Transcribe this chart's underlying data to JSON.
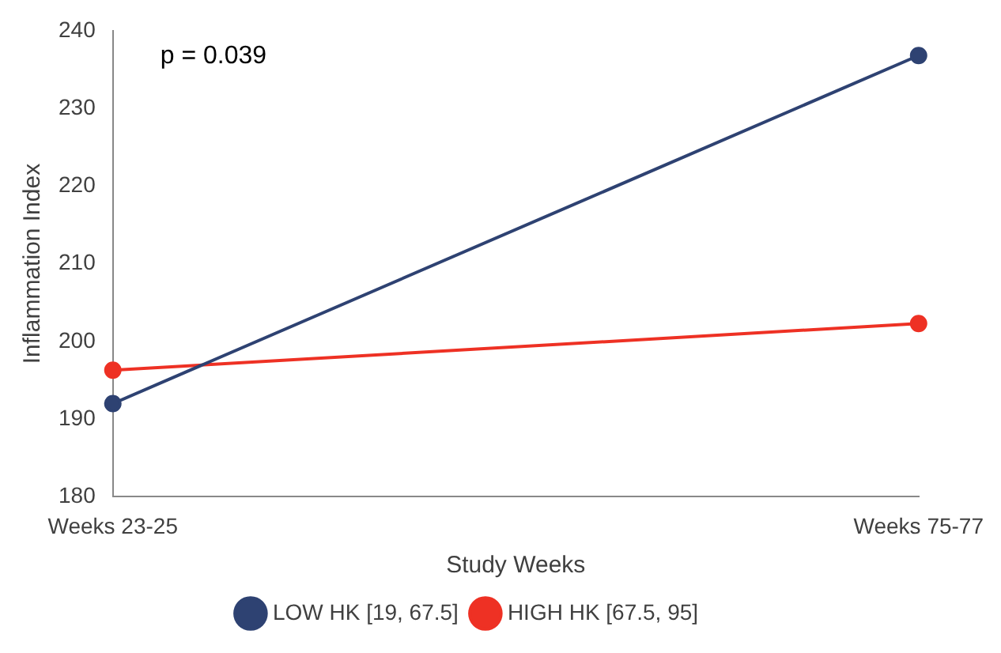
{
  "chart_data": {
    "type": "line",
    "xlabel": "Study Weeks",
    "ylabel": "Inflammation Index",
    "categories": [
      "Weeks 23-25",
      "Weeks 75-77"
    ],
    "series": [
      {
        "name": "LOW HK [19, 67.5]",
        "color": "#2e4272",
        "values": [
          192,
          236.8
        ]
      },
      {
        "name": "HIGH HK [67.5, 95]",
        "color": "#ee3124",
        "values": [
          196.3,
          202.3
        ]
      }
    ],
    "ylim": [
      180,
      240
    ],
    "yticks": [
      180,
      190,
      200,
      210,
      220,
      230,
      240
    ],
    "grid": false,
    "legend": "bottom",
    "marker": "circle",
    "line_style": "solid",
    "annotations": [
      "p = 0.039"
    ]
  }
}
